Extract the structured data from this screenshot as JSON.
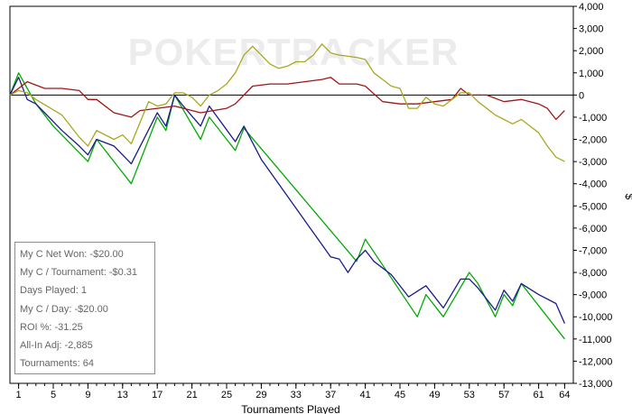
{
  "watermark": "POKERTRACKER",
  "chart_data": {
    "type": "line",
    "xlabel": "Tournaments Played",
    "ylabel": "$",
    "xlim": [
      0,
      65
    ],
    "ylim": [
      -13000,
      4000
    ],
    "x_ticks": [
      "1",
      "5",
      "9",
      "13",
      "17",
      "21",
      "25",
      "29",
      "33",
      "37",
      "41",
      "45",
      "49",
      "53",
      "57",
      "61",
      "64"
    ],
    "y_ticks": [
      "4,000",
      "3,000",
      "2,000",
      "1,000",
      "0",
      "-1,000",
      "-2,000",
      "-3,000",
      "-4,000",
      "-5,000",
      "-6,000",
      "-7,000",
      "-8,000",
      "-9,000",
      "-10,000",
      "-11,000",
      "-12,000",
      "-13,000"
    ],
    "zero_line": true,
    "legend": "none",
    "series": [
      {
        "color": "#00aa00",
        "x": [
          0,
          1,
          3,
          5,
          7,
          9,
          10,
          14,
          17,
          18,
          19,
          22,
          23,
          26,
          27,
          40,
          41,
          47,
          48,
          50,
          53,
          54,
          56,
          57,
          58,
          59,
          64
        ],
        "y": [
          0,
          1000,
          -400,
          -1400,
          -2200,
          -3000,
          -2000,
          -4000,
          -1000,
          -1600,
          0,
          -2000,
          -1000,
          -2500,
          -1500,
          -7500,
          -6500,
          -10000,
          -9000,
          -10000,
          -8000,
          -8500,
          -10000,
          -9000,
          -9500,
          -8500,
          -11000
        ]
      },
      {
        "color": "#1a1a8c",
        "x": [
          0,
          1,
          2,
          3,
          4,
          6,
          8,
          9,
          10,
          12,
          14,
          17,
          18,
          19,
          20,
          22,
          23,
          26,
          27,
          29,
          31,
          33,
          35,
          37,
          38,
          39,
          40,
          41,
          42,
          44,
          46,
          48,
          50,
          52,
          53,
          54,
          56,
          57,
          58,
          59,
          61,
          63,
          64
        ],
        "y": [
          0,
          800,
          -200,
          -400,
          -800,
          -1600,
          -2300,
          -2700,
          -2000,
          -2300,
          -3100,
          -800,
          -1400,
          0,
          -500,
          -1400,
          -500,
          -2100,
          -1400,
          -2900,
          -4000,
          -5100,
          -6200,
          -7300,
          -7400,
          -8000,
          -7400,
          -7000,
          -7500,
          -8100,
          -9100,
          -8600,
          -9600,
          -8300,
          -8300,
          -8700,
          -9700,
          -8800,
          -9300,
          -8500,
          -9000,
          -9400,
          -10300
        ]
      },
      {
        "color": "#a31515",
        "x": [
          0,
          2,
          4,
          6,
          8,
          9,
          10,
          12,
          14,
          15,
          17,
          19,
          22,
          25,
          26,
          28,
          30,
          32,
          34,
          36,
          37,
          38,
          40,
          41,
          43,
          45,
          47,
          49,
          51,
          52,
          53,
          55,
          57,
          59,
          61,
          62,
          63,
          64
        ],
        "y": [
          0,
          600,
          300,
          300,
          200,
          -200,
          -200,
          -800,
          -1000,
          -700,
          -600,
          -500,
          -800,
          -600,
          -400,
          400,
          500,
          500,
          600,
          700,
          800,
          500,
          500,
          400,
          -300,
          -400,
          -400,
          -300,
          -200,
          300,
          0,
          0,
          -300,
          -200,
          -400,
          -600,
          -1100,
          -700
        ]
      },
      {
        "color": "#a8a820",
        "x": [
          0,
          1,
          2,
          3,
          6,
          8,
          9,
          10,
          12,
          13,
          14,
          16,
          17,
          18,
          19,
          20,
          21,
          22,
          23,
          24,
          25,
          26,
          27,
          28,
          30,
          31,
          32,
          33,
          34,
          35,
          36,
          37,
          38,
          40,
          41,
          42,
          43,
          44,
          45,
          46,
          47,
          48,
          49,
          50,
          51,
          52,
          53,
          54,
          56,
          58,
          59,
          61,
          62,
          63,
          64
        ],
        "y": [
          0,
          200,
          100,
          -200,
          -900,
          -1900,
          -2300,
          -1600,
          -2000,
          -1800,
          -2200,
          -300,
          -500,
          -400,
          100,
          100,
          -100,
          -500,
          0,
          200,
          500,
          1000,
          1800,
          2200,
          1400,
          1200,
          1300,
          1500,
          1500,
          1800,
          2300,
          1900,
          1800,
          1700,
          1600,
          1000,
          700,
          400,
          300,
          -600,
          -600,
          -100,
          -400,
          -500,
          -200,
          100,
          100,
          -300,
          -900,
          -1300,
          -1100,
          -1700,
          -2300,
          -2800,
          -3000
        ]
      }
    ]
  },
  "stats_box": {
    "rows": [
      "My C Net Won: -$20.00",
      "My C / Tournament: -$0.31",
      "Days Played: 1",
      "My C / Day: -$20.00",
      "ROI %: -31.25",
      "All-In Adj: -2,885",
      "Tournaments: 64"
    ]
  }
}
